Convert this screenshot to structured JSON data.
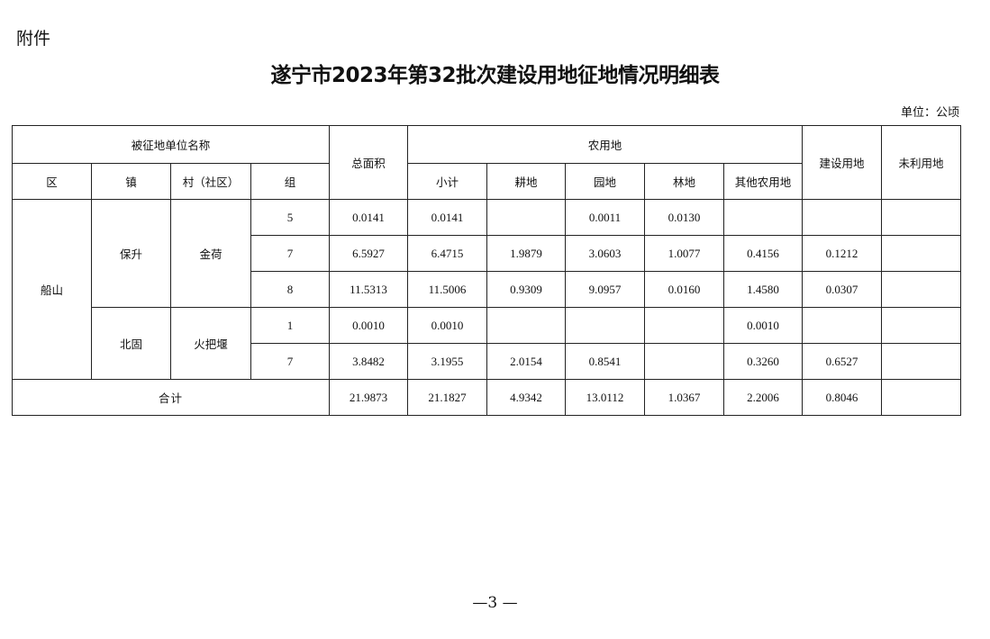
{
  "attachment_label": "附件",
  "title": "遂宁市2023年第32批次建设用地征地情况明细表",
  "unit": "单位：公顷",
  "headers": {
    "unit_name": "被征地单位名称",
    "district": "区",
    "town": "镇",
    "village": "村（社区）",
    "group": "组",
    "total_area": "总面积",
    "agricultural": "农用地",
    "subtotal": "小计",
    "cultivated": "耕地",
    "garden": "园地",
    "forest": "林地",
    "other_agri": "其他农用地",
    "construction": "建设用地",
    "unused": "未利用地"
  },
  "district": "船山",
  "towns": [
    {
      "town": "保升",
      "village": "金荷"
    },
    {
      "town": "北固",
      "village": "火把堰"
    }
  ],
  "rows": [
    {
      "group": "5",
      "total": "0.0141",
      "subtotal": "0.0141",
      "cultivated": "",
      "garden": "0.0011",
      "forest": "0.0130",
      "other": "",
      "construction": "",
      "unused": ""
    },
    {
      "group": "7",
      "total": "6.5927",
      "subtotal": "6.4715",
      "cultivated": "1.9879",
      "garden": "3.0603",
      "forest": "1.0077",
      "other": "0.4156",
      "construction": "0.1212",
      "unused": ""
    },
    {
      "group": "8",
      "total": "11.5313",
      "subtotal": "11.5006",
      "cultivated": "0.9309",
      "garden": "9.0957",
      "forest": "0.0160",
      "other": "1.4580",
      "construction": "0.0307",
      "unused": ""
    },
    {
      "group": "1",
      "total": "0.0010",
      "subtotal": "0.0010",
      "cultivated": "",
      "garden": "",
      "forest": "",
      "other": "0.0010",
      "construction": "",
      "unused": ""
    },
    {
      "group": "7",
      "total": "3.8482",
      "subtotal": "3.1955",
      "cultivated": "2.0154",
      "garden": "0.8541",
      "forest": "",
      "other": "0.3260",
      "construction": "0.6527",
      "unused": ""
    }
  ],
  "total_row": {
    "label": "合计",
    "total": "21.9873",
    "subtotal": "21.1827",
    "cultivated": "4.9342",
    "garden": "13.0112",
    "forest": "1.0367",
    "other": "2.2006",
    "construction": "0.8046",
    "unused": ""
  },
  "page_number": "—3 —"
}
